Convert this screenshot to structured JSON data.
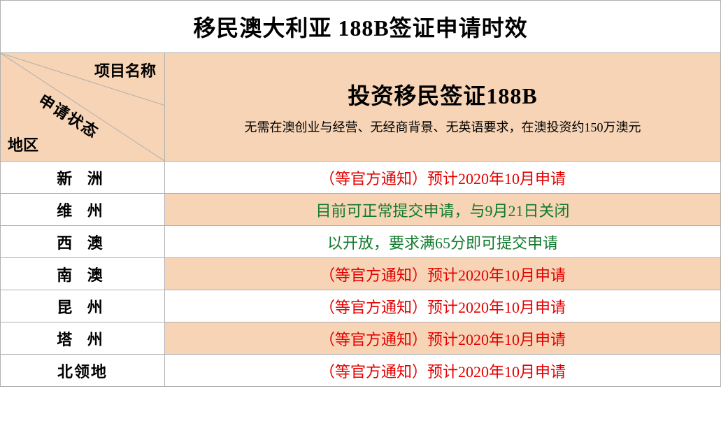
{
  "title": "移民澳大利亚 188B签证申请时效",
  "colors": {
    "peach": "#f7d4b5",
    "border": "#b0b0b0",
    "red": "#e40000",
    "green": "#117a2e",
    "black": "#000000"
  },
  "header": {
    "diagonal": {
      "top": "项目名称",
      "middle": "申请状态",
      "bottom": "地区"
    },
    "right": {
      "title": "投资移民签证188B",
      "subtitle": "无需在澳创业与经营、无经商背景、无英语要求，在澳投资约150万澳元"
    }
  },
  "rows": [
    {
      "region": "新 洲",
      "status": "（等官方通知）预计2020年10月申请",
      "color": "#e40000"
    },
    {
      "region": "维 州",
      "status": "目前可正常提交申请，与9月21日关闭",
      "color": "#117a2e"
    },
    {
      "region": "西 澳",
      "status": "以开放，要求满65分即可提交申请",
      "color": "#117a2e"
    },
    {
      "region": "南 澳",
      "status": "（等官方通知）预计2020年10月申请",
      "color": "#e40000"
    },
    {
      "region": "昆 州",
      "status": "（等官方通知）预计2020年10月申请",
      "color": "#e40000"
    },
    {
      "region": "塔 州",
      "status": "（等官方通知）预计2020年10月申请",
      "color": "#e40000"
    },
    {
      "region": "北领地",
      "status": "（等官方通知）预计2020年10月申请",
      "color": "#e40000"
    }
  ]
}
